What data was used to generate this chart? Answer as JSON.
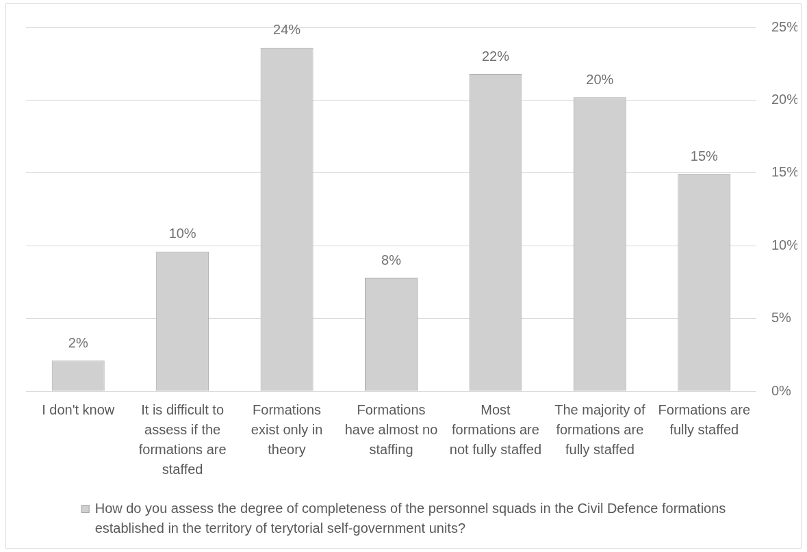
{
  "chart_data": {
    "type": "bar",
    "categories": [
      "I don't know",
      "It is difficult to assess if the formations are staffed",
      "Formations exist only in theory",
      "Formations have almost no staffing",
      "Most formations are not fully staffed",
      "The majority of formations are fully staffed",
      "Formations are fully staffed"
    ],
    "series": [
      {
        "name": "How do you assess the degree of completeness of the personnel squads in the Civil Defence formations established in the territory of terytorial self-government units?",
        "color": "#d0d0d0",
        "values": [
          2.1,
          9.6,
          23.6,
          7.8,
          21.8,
          20.2,
          14.9
        ],
        "value_labels": [
          "2%",
          "10%",
          "24%",
          "8%",
          "22%",
          "20%",
          "15%"
        ]
      }
    ],
    "ylim": [
      0,
      25
    ],
    "yticks": [
      {
        "value": 0,
        "label": "0%"
      },
      {
        "value": 5,
        "label": "5%"
      },
      {
        "value": 10,
        "label": "10%"
      },
      {
        "value": 15,
        "label": "15%"
      },
      {
        "value": 20,
        "label": "20%"
      },
      {
        "value": 25,
        "label": "25%"
      }
    ],
    "grid": "y",
    "legend": "bottom"
  }
}
